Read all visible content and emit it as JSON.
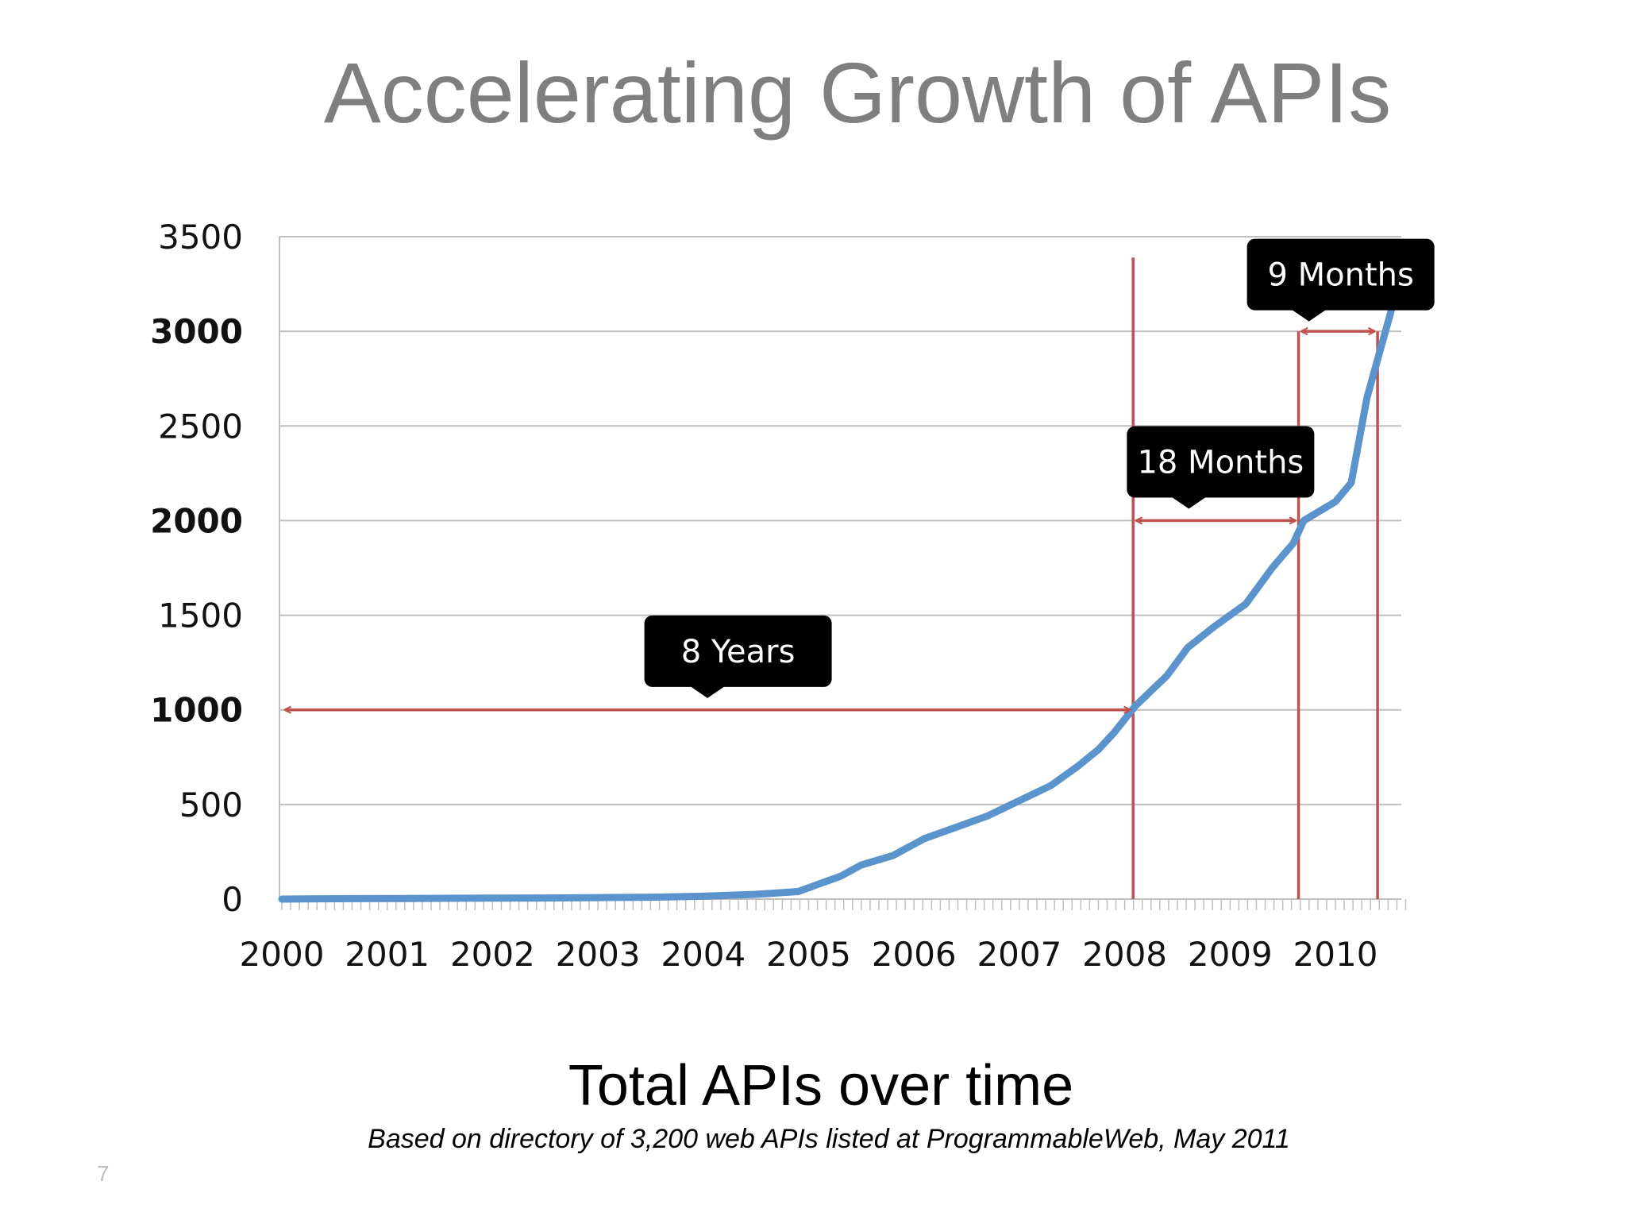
{
  "slide": {
    "title": "Accelerating Growth of APIs",
    "caption": "Total APIs over time",
    "source": "Based on directory of 3,200 web APIs listed at ProgrammableWeb, May 2011",
    "number": "7"
  },
  "colors": {
    "series": "#5b93cc",
    "marker": "#c0504d",
    "grid": "#bfbfbf",
    "callout_bg": "#000000",
    "callout_text": "#ffffff",
    "title": "#7f7f7f"
  },
  "chart_data": {
    "type": "line",
    "title": "",
    "xlabel": "",
    "ylabel": "",
    "xlim": [
      2000,
      2010.65
    ],
    "ylim": [
      0,
      3500
    ],
    "grid": true,
    "legend": "none",
    "x_ticks": [
      "2000",
      "2001",
      "2002",
      "2003",
      "2004",
      "2005",
      "2006",
      "2007",
      "2008",
      "2009",
      "2010"
    ],
    "y_ticks": [
      {
        "label": "0",
        "value": 0,
        "bold": false
      },
      {
        "label": "500",
        "value": 500,
        "bold": false
      },
      {
        "label": "1000",
        "value": 1000,
        "bold": true
      },
      {
        "label": "1500",
        "value": 1500,
        "bold": false
      },
      {
        "label": "2000",
        "value": 2000,
        "bold": true
      },
      {
        "label": "2500",
        "value": 2500,
        "bold": false
      },
      {
        "label": "3000",
        "value": 3000,
        "bold": true
      },
      {
        "label": "3500",
        "value": 3500,
        "bold": false
      }
    ],
    "series": [
      {
        "x": [
          2000,
          2000.5,
          2001,
          2001.5,
          2002,
          2002.5,
          2003,
          2003.5,
          2004,
          2004.5,
          2004.9,
          2005.1,
          2005.3,
          2005.5,
          2005.8,
          2006.1,
          2006.4,
          2006.7,
          2007.0,
          2007.3,
          2007.55,
          2007.75,
          2007.9,
          2008.1,
          2008.4,
          2008.6,
          2008.85,
          2009.15,
          2009.4,
          2009.6,
          2009.7,
          2010.0,
          2010.15,
          2010.3,
          2010.45,
          2010.55
        ],
        "y": [
          0,
          2,
          3,
          4,
          5,
          6,
          8,
          10,
          15,
          25,
          40,
          80,
          120,
          180,
          230,
          320,
          380,
          440,
          520,
          600,
          700,
          790,
          880,
          1020,
          1180,
          1330,
          1440,
          1560,
          1750,
          1880,
          2000,
          2100,
          2200,
          2650,
          2950,
          3150
        ]
      }
    ],
    "markers": [
      {
        "x": 2008.08,
        "y_top": 3390
      },
      {
        "x": 2009.65,
        "y_top": 3000
      },
      {
        "x": 2010.4,
        "y_top": 3000
      }
    ],
    "intervals": [
      {
        "label": "8 Years",
        "x_start": 2000,
        "x_end": 2008.08,
        "y": 1000,
        "box_x": 2004.33,
        "box_y": 1310
      },
      {
        "label": "18 Months",
        "x_start": 2008.08,
        "x_end": 2009.65,
        "y": 2000,
        "box_x": 2008.91,
        "box_y": 2310
      },
      {
        "label": "9 Months",
        "x_start": 2009.65,
        "x_end": 2010.4,
        "y": 3000,
        "box_x": 2010.05,
        "box_y": 3300
      }
    ]
  }
}
